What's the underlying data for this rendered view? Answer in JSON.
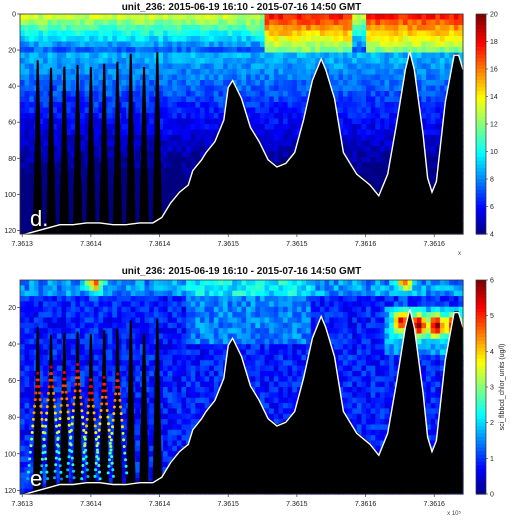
{
  "chart_data": [
    {
      "type": "heatmap",
      "panel_label": "d.",
      "title": "unit_236: 2015-06-19 16:10 - 2015-07-16 14:50 GMT",
      "x_ticks": [
        "7.3613",
        "7.3614",
        "7.3614",
        "7.3615",
        "7.3615",
        "7.3616",
        "7.3616"
      ],
      "x_exponent": "x",
      "y_ticks": [
        0,
        20,
        40,
        60,
        80,
        100,
        120
      ],
      "ylim": [
        0,
        122
      ],
      "y_reversed": true,
      "colorbar": {
        "min": 4,
        "max": 20,
        "ticks": [
          4,
          6,
          8,
          10,
          12,
          14,
          16,
          18,
          20
        ],
        "label": ""
      },
      "colormap": "jet",
      "surface_band": {
        "depth_max": 20,
        "value_peak": 18
      },
      "seafloor_profile": [
        [
          0.0,
          122
        ],
        [
          0.03,
          120
        ],
        [
          0.06,
          118
        ],
        [
          0.09,
          116
        ],
        [
          0.12,
          116
        ],
        [
          0.15,
          115
        ],
        [
          0.18,
          115
        ],
        [
          0.21,
          116
        ],
        [
          0.24,
          116
        ],
        [
          0.27,
          115
        ],
        [
          0.3,
          115
        ],
        [
          0.32,
          112
        ],
        [
          0.34,
          104
        ],
        [
          0.36,
          98
        ],
        [
          0.38,
          94
        ],
        [
          0.39,
          86
        ],
        [
          0.41,
          80
        ],
        [
          0.42,
          76
        ],
        [
          0.44,
          70
        ],
        [
          0.46,
          58
        ],
        [
          0.47,
          40
        ],
        [
          0.48,
          36
        ],
        [
          0.5,
          46
        ],
        [
          0.52,
          62
        ],
        [
          0.54,
          70
        ],
        [
          0.56,
          80
        ],
        [
          0.58,
          84
        ],
        [
          0.6,
          82
        ],
        [
          0.62,
          76
        ],
        [
          0.64,
          58
        ],
        [
          0.66,
          36
        ],
        [
          0.68,
          24
        ],
        [
          0.69,
          30
        ],
        [
          0.71,
          46
        ],
        [
          0.73,
          76
        ],
        [
          0.76,
          88
        ],
        [
          0.79,
          94
        ],
        [
          0.81,
          100
        ],
        [
          0.83,
          88
        ],
        [
          0.85,
          60
        ],
        [
          0.87,
          30
        ],
        [
          0.88,
          20
        ],
        [
          0.89,
          30
        ],
        [
          0.91,
          66
        ],
        [
          0.92,
          90
        ],
        [
          0.93,
          98
        ],
        [
          0.94,
          92
        ],
        [
          0.96,
          48
        ],
        [
          0.98,
          22
        ],
        [
          0.99,
          22
        ],
        [
          1.0,
          30
        ]
      ],
      "cast_columns": [
        0.04,
        0.07,
        0.1,
        0.13,
        0.16,
        0.19,
        0.22,
        0.25,
        0.28,
        0.31
      ]
    },
    {
      "type": "heatmap",
      "panel_label": "e",
      "title": "unit_236: 2015-06-19 16:10 - 2015-07-16 14:50 GMT",
      "x_ticks": [
        "7.3613",
        "7.3614",
        "7.3614",
        "7.3615",
        "7.3615",
        "7.3616",
        "7.3616"
      ],
      "x_exponent": "x 10⁵",
      "y_ticks": [
        20,
        40,
        60,
        80,
        100,
        120
      ],
      "ylim": [
        5,
        122
      ],
      "y_reversed": true,
      "colorbar": {
        "min": 0,
        "max": 6,
        "ticks": [
          0,
          1,
          2,
          3,
          4,
          5,
          6
        ],
        "label": "sci_flbbcd_chlor_units (ug/l)"
      },
      "colormap": "jet",
      "surface_band": {
        "depth_max": 15,
        "value_peak": 3
      },
      "seafloor_profile": [
        [
          0.0,
          122
        ],
        [
          0.03,
          120
        ],
        [
          0.06,
          118
        ],
        [
          0.09,
          116
        ],
        [
          0.12,
          116
        ],
        [
          0.15,
          115
        ],
        [
          0.18,
          115
        ],
        [
          0.21,
          116
        ],
        [
          0.24,
          116
        ],
        [
          0.27,
          115
        ],
        [
          0.3,
          115
        ],
        [
          0.32,
          112
        ],
        [
          0.34,
          104
        ],
        [
          0.36,
          98
        ],
        [
          0.38,
          94
        ],
        [
          0.39,
          86
        ],
        [
          0.41,
          80
        ],
        [
          0.42,
          76
        ],
        [
          0.44,
          70
        ],
        [
          0.46,
          58
        ],
        [
          0.47,
          40
        ],
        [
          0.48,
          36
        ],
        [
          0.5,
          46
        ],
        [
          0.52,
          62
        ],
        [
          0.54,
          70
        ],
        [
          0.56,
          80
        ],
        [
          0.58,
          84
        ],
        [
          0.6,
          82
        ],
        [
          0.62,
          76
        ],
        [
          0.64,
          58
        ],
        [
          0.66,
          36
        ],
        [
          0.68,
          24
        ],
        [
          0.69,
          30
        ],
        [
          0.71,
          46
        ],
        [
          0.73,
          76
        ],
        [
          0.76,
          88
        ],
        [
          0.79,
          94
        ],
        [
          0.81,
          100
        ],
        [
          0.83,
          88
        ],
        [
          0.85,
          60
        ],
        [
          0.87,
          30
        ],
        [
          0.88,
          20
        ],
        [
          0.89,
          30
        ],
        [
          0.91,
          66
        ],
        [
          0.92,
          90
        ],
        [
          0.93,
          98
        ],
        [
          0.94,
          92
        ],
        [
          0.96,
          48
        ],
        [
          0.98,
          22
        ],
        [
          0.99,
          22
        ],
        [
          1.0,
          30
        ]
      ],
      "cast_columns": [
        0.04,
        0.07,
        0.1,
        0.13,
        0.16,
        0.19,
        0.22,
        0.25,
        0.28,
        0.31
      ],
      "high_patches": [
        {
          "x": 0.9,
          "depth": 30,
          "value": 5.5
        },
        {
          "x": 0.94,
          "depth": 30,
          "value": 5.5
        },
        {
          "x": 0.86,
          "depth": 28,
          "value": 4.8
        },
        {
          "x": 0.98,
          "depth": 30,
          "value": 5.2
        },
        {
          "x": 0.87,
          "depth": 5,
          "value": 4.5
        },
        {
          "x": 0.17,
          "depth": 6,
          "value": 4.2
        }
      ]
    }
  ]
}
